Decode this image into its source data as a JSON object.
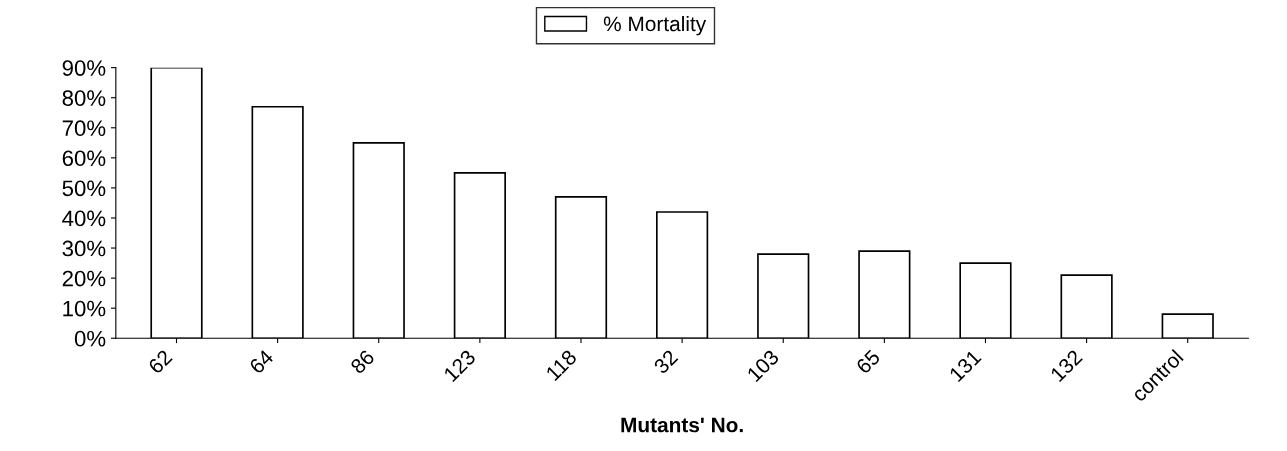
{
  "chart_data": {
    "type": "bar",
    "xlabel": "Mutants' No.",
    "categories": [
      "62",
      "64",
      "86",
      "123",
      "118",
      "32",
      "103",
      "65",
      "131",
      "132",
      "control"
    ],
    "series": [
      {
        "name": "% Mortality",
        "color": "#ffffff",
        "values": [
          90,
          77,
          65,
          55,
          47,
          42,
          28,
          29,
          25,
          21,
          8
        ]
      }
    ],
    "ylim": [
      0,
      90
    ],
    "yticks": [
      {
        "value": 0,
        "label": "0%"
      },
      {
        "value": 10,
        "label": "10%"
      },
      {
        "value": 20,
        "label": "20%"
      },
      {
        "value": 30,
        "label": "30%"
      },
      {
        "value": 40,
        "label": "40%"
      },
      {
        "value": 50,
        "label": "50%"
      },
      {
        "value": 60,
        "label": "60%"
      },
      {
        "value": 70,
        "label": "70%"
      },
      {
        "value": 80,
        "label": "80%"
      },
      {
        "value": 90,
        "label": "90%"
      }
    ],
    "grid": false,
    "legend": "top"
  }
}
